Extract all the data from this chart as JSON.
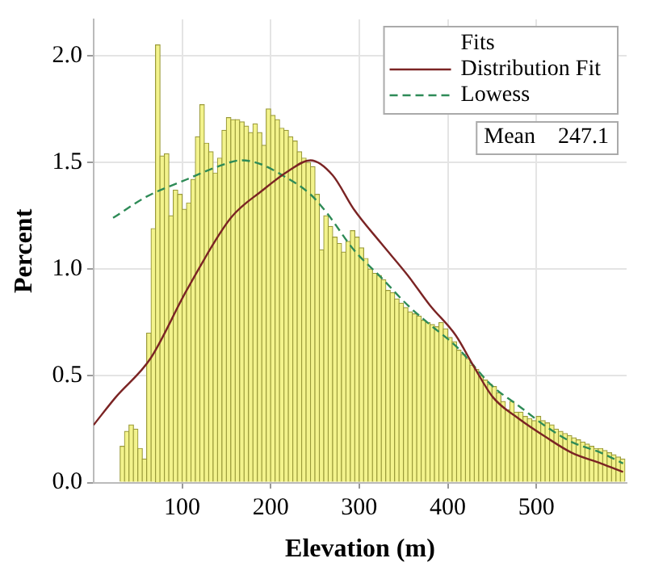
{
  "chart_data": {
    "type": "histogram",
    "xlabel": "Elevation (m)",
    "ylabel": "Percent",
    "legend_title": "Fits",
    "annotations": [
      "Mean    247.1"
    ],
    "bins": [
      30,
      35,
      40,
      45,
      50,
      55,
      60,
      65,
      70,
      75,
      80,
      85,
      90,
      95,
      100,
      105,
      110,
      115,
      120,
      125,
      130,
      135,
      140,
      145,
      150,
      155,
      160,
      165,
      170,
      175,
      180,
      185,
      190,
      195,
      200,
      205,
      210,
      215,
      220,
      225,
      230,
      235,
      240,
      245,
      250,
      255,
      260,
      265,
      270,
      275,
      280,
      285,
      290,
      295,
      300,
      305,
      310,
      315,
      320,
      325,
      330,
      335,
      340,
      345,
      350,
      355,
      360,
      365,
      370,
      375,
      380,
      385,
      390,
      395,
      400,
      405,
      410,
      415,
      420,
      425,
      430,
      435,
      440,
      445,
      450,
      455,
      460,
      465,
      470,
      475,
      480,
      485,
      490,
      495,
      500,
      505,
      510,
      515,
      520,
      525,
      530,
      535,
      540,
      545,
      550,
      555,
      560,
      565,
      570,
      575,
      580,
      585,
      590,
      595,
      600
    ],
    "series": [
      {
        "color": "#f3f38c",
        "values": [
          0.17,
          0.24,
          0.27,
          0.25,
          0.16,
          0.11,
          0.7,
          1.19,
          2.05,
          1.53,
          1.54,
          1.25,
          1.37,
          1.35,
          1.28,
          1.31,
          1.42,
          1.62,
          1.77,
          1.59,
          1.55,
          1.45,
          1.52,
          1.65,
          1.71,
          1.7,
          1.7,
          1.69,
          1.67,
          1.64,
          1.68,
          1.64,
          1.58,
          1.75,
          1.72,
          1.7,
          1.66,
          1.65,
          1.62,
          1.6,
          1.55,
          1.52,
          1.5,
          1.48,
          1.35,
          1.09,
          1.25,
          1.2,
          1.15,
          1.12,
          1.08,
          1.13,
          1.18,
          1.15,
          1.1,
          1.05,
          1.0,
          0.98,
          0.97,
          0.95,
          0.9,
          0.89,
          0.86,
          0.84,
          0.82,
          0.8,
          0.79,
          0.78,
          0.76,
          0.75,
          0.74,
          0.73,
          0.75,
          0.72,
          0.68,
          0.66,
          0.62,
          0.6,
          0.58,
          0.55,
          0.53,
          0.5,
          0.48,
          0.46,
          0.45,
          0.42,
          0.38,
          0.34,
          0.38,
          0.33,
          0.33,
          0.31,
          0.3,
          0.29,
          0.31,
          0.29,
          0.28,
          0.27,
          0.25,
          0.24,
          0.23,
          0.22,
          0.21,
          0.2,
          0.19,
          0.18,
          0.17,
          0.16,
          0.16,
          0.15,
          0.14,
          0.13,
          0.12,
          0.11
        ]
      },
      {
        "type": "line",
        "name": "Distribution Fit",
        "color": "#7b2424",
        "line_style": "solid",
        "x": [
          0,
          25,
          64,
          105,
          155,
          191,
          220,
          245,
          270,
          294,
          325,
          355,
          380,
          409,
          430,
          451,
          480,
          512,
          540,
          573,
          598
        ],
        "values": [
          0.27,
          0.4,
          0.58,
          0.9,
          1.24,
          1.37,
          1.46,
          1.51,
          1.44,
          1.28,
          1.12,
          0.97,
          0.83,
          0.69,
          0.54,
          0.4,
          0.3,
          0.21,
          0.14,
          0.09,
          0.05
        ]
      },
      {
        "type": "line",
        "name": "Lowess",
        "color": "#2e8b57",
        "line_style": "dashed",
        "x": [
          22,
          60,
          105,
          140,
          167,
          190,
          209,
          245,
          264,
          294,
          325,
          355,
          380,
          409,
          451,
          480,
          512,
          540,
          573,
          598
        ],
        "values": [
          1.24,
          1.34,
          1.42,
          1.48,
          1.51,
          1.49,
          1.45,
          1.35,
          1.26,
          1.09,
          0.96,
          0.83,
          0.74,
          0.64,
          0.45,
          0.36,
          0.26,
          0.19,
          0.14,
          0.09
        ]
      }
    ],
    "xlim": [
      0,
      602
    ],
    "xticks": [
      100,
      200,
      300,
      400,
      500
    ],
    "ylim": [
      0,
      2.17
    ],
    "yticks": [
      {
        "value": 0,
        "label": "0.0"
      },
      0.5,
      {
        "value": 1,
        "label": "1.0"
      },
      1.5,
      {
        "value": 2,
        "label": "2.0"
      }
    ],
    "grid": true,
    "legend": "top right",
    "marker": "none"
  }
}
